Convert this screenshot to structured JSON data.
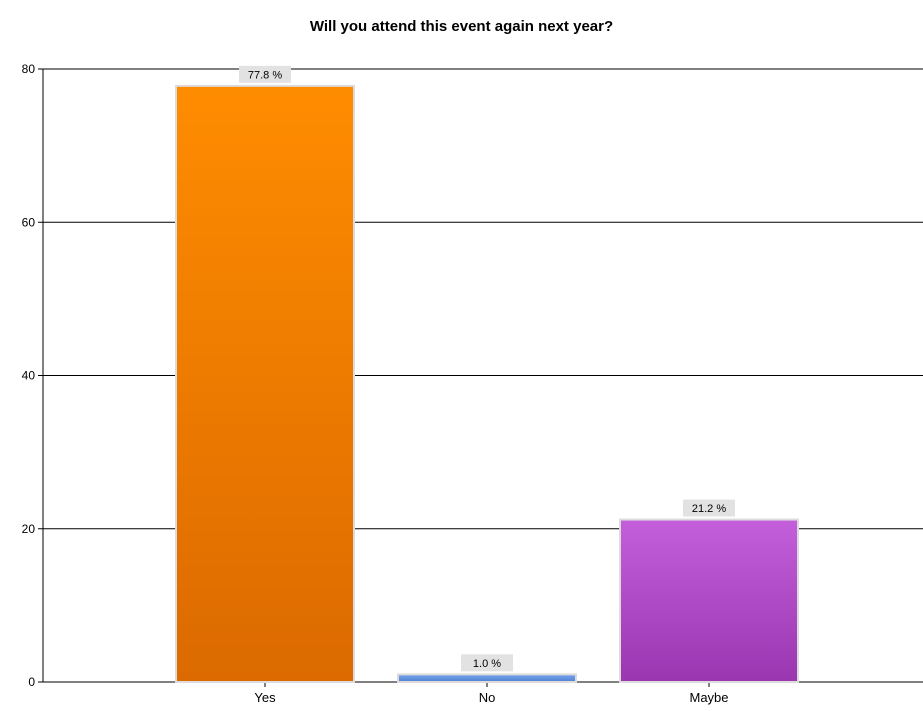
{
  "chart_data": {
    "type": "bar",
    "title": "Will you attend this event again next year?",
    "xlabel": "",
    "ylabel": "",
    "categories": [
      "Yes",
      "No",
      "Maybe"
    ],
    "values": [
      77.8,
      1.0,
      21.2
    ],
    "data_labels": [
      "77.8 %",
      "1.0 %",
      "21.2 %"
    ],
    "ylim": [
      0,
      80
    ],
    "yticks": [
      0,
      20,
      40,
      60,
      80
    ],
    "grid": true,
    "colors": {
      "Yes": [
        "#ff8c00",
        "#db6a00"
      ],
      "No": [
        "#7aa6ee",
        "#4f7fd0"
      ],
      "Maybe": [
        "#c45fdb",
        "#9a36b0"
      ],
      "label_bg": "#e2e2e2",
      "bar_border": "#dcdcdc"
    }
  }
}
